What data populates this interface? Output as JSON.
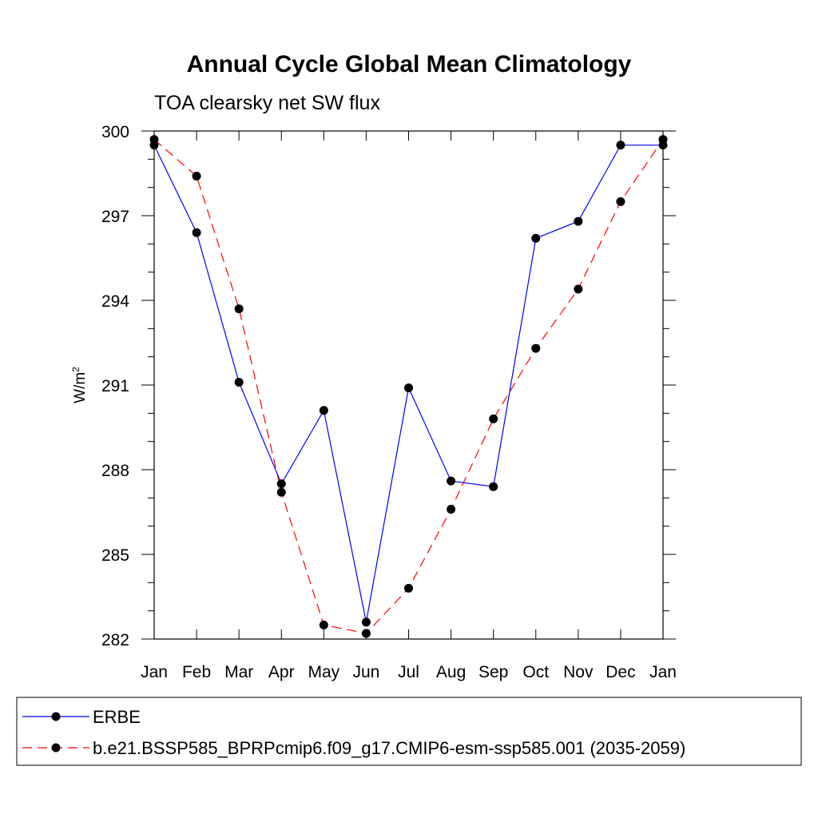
{
  "chart_data": {
    "type": "line",
    "title": "Annual Cycle Global Mean Climatology",
    "subtitle": "TOA clearsky net SW flux",
    "xlabel": "",
    "ylabel_base": "W/m",
    "ylabel_sup": "2",
    "categories": [
      "Jan",
      "Feb",
      "Mar",
      "Apr",
      "May",
      "Jun",
      "Jul",
      "Aug",
      "Sep",
      "Oct",
      "Nov",
      "Dec",
      "Jan"
    ],
    "ylim": [
      282,
      300
    ],
    "yticks": [
      282,
      285,
      288,
      291,
      294,
      297,
      300
    ],
    "yticks_labels": [
      "282",
      "285",
      "288",
      "291",
      "294",
      "297",
      "300"
    ],
    "grid": false,
    "legend_position": "bottom",
    "series": [
      {
        "name": "ERBE",
        "color": "#0000ff",
        "dash": "solid",
        "values": [
          299.5,
          296.4,
          291.1,
          287.5,
          290.1,
          282.6,
          290.9,
          287.6,
          287.4,
          296.2,
          296.8,
          299.5,
          299.5
        ]
      },
      {
        "name": "b.e21.BSSP585_BPRPcmip6.f09_g17.CMIP6-esm-ssp585.001 (2035-2059)",
        "color": "#ff0000",
        "dash": "dashed",
        "values": [
          299.7,
          298.4,
          293.7,
          287.2,
          282.5,
          282.2,
          283.8,
          286.6,
          289.8,
          292.3,
          294.4,
          297.5,
          299.7
        ]
      }
    ]
  }
}
